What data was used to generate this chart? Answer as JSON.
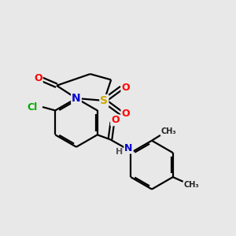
{
  "background_color": "#e8e8e8",
  "bond_color": "#000000",
  "atom_colors": {
    "O": "#ff0000",
    "N": "#0000cc",
    "S": "#ccaa00",
    "Cl": "#00aa00",
    "C": "#000000",
    "H": "#555555"
  },
  "figsize": [
    3.0,
    3.0
  ],
  "dpi": 100,
  "lw": 1.6,
  "lw_double_sep": 0.08
}
